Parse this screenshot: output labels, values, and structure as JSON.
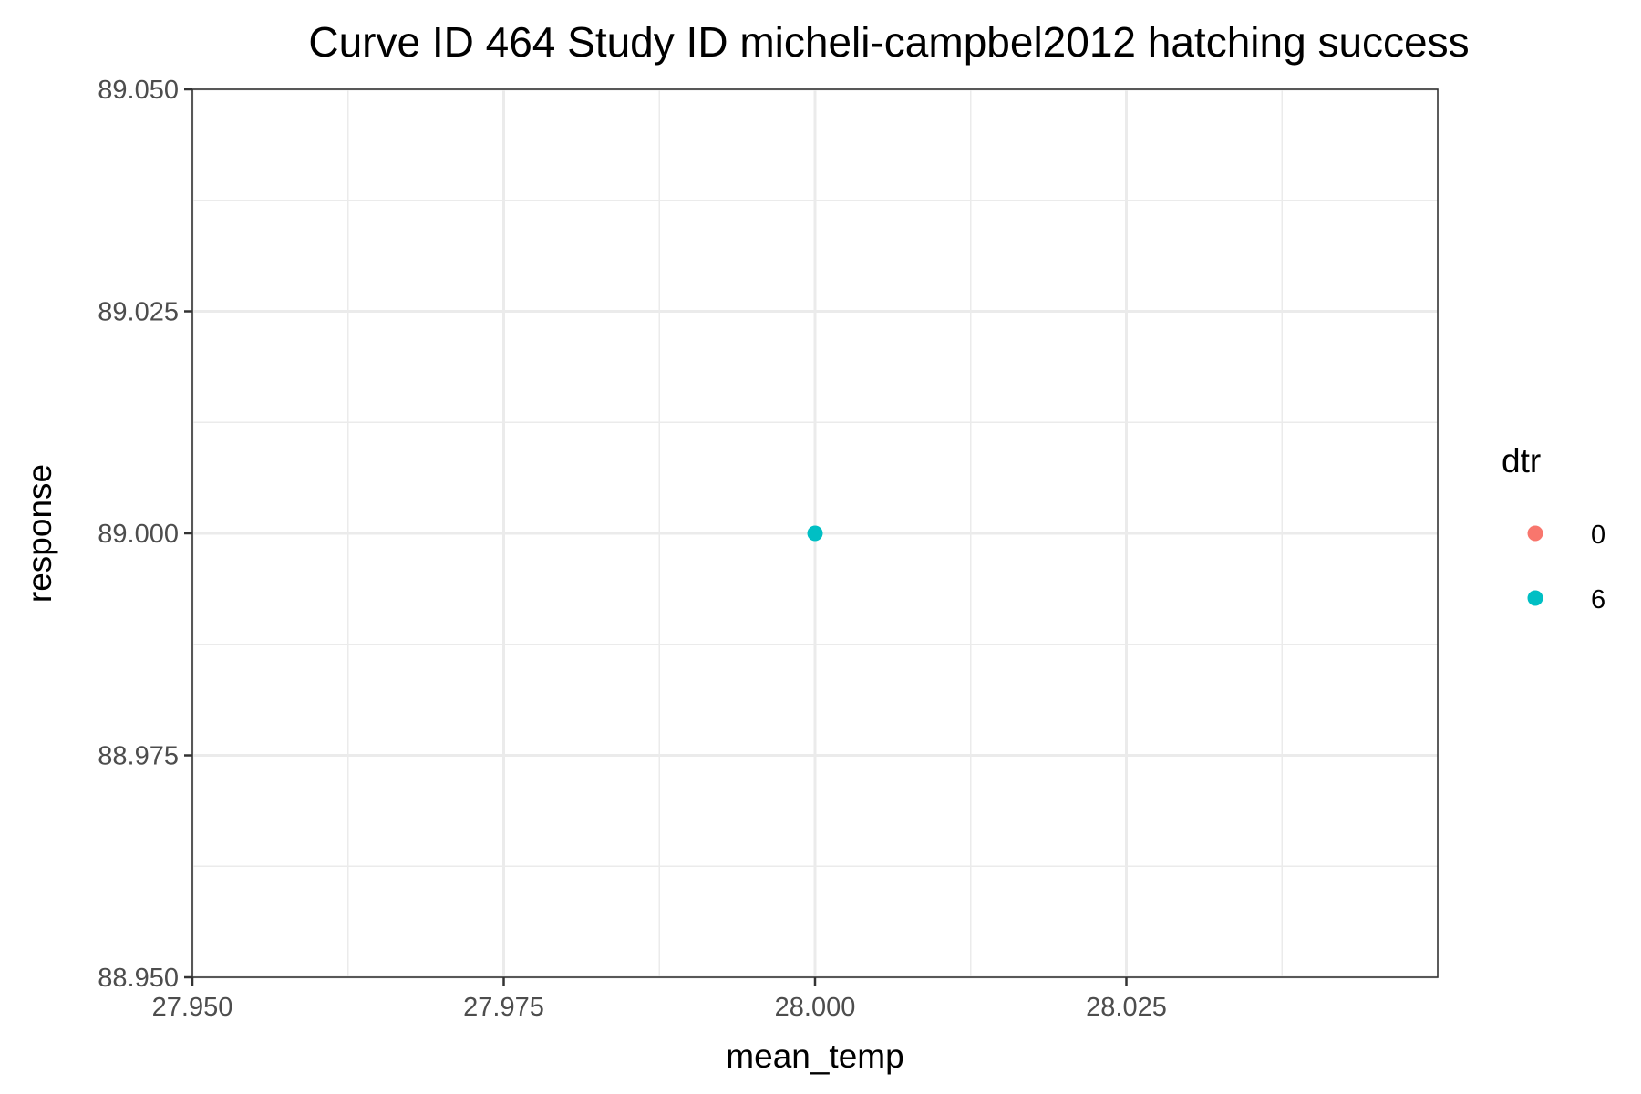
{
  "chart_data": {
    "type": "scatter",
    "title": "Curve ID 464 Study ID micheli-campbel2012 hatching success",
    "xlabel": "mean_temp",
    "ylabel": "response",
    "xlim": [
      27.95,
      28.05
    ],
    "ylim": [
      88.95,
      89.05
    ],
    "x_ticks": [
      27.95,
      27.975,
      28.0,
      28.025
    ],
    "x_tick_labels": [
      "27.950",
      "27.975",
      "28.000",
      "28.025"
    ],
    "y_ticks": [
      88.95,
      88.975,
      89.0,
      89.025,
      89.05
    ],
    "y_tick_labels": [
      "88.950",
      "88.975",
      "89.000",
      "89.025",
      "89.050"
    ],
    "grid": true,
    "legend": {
      "title": "dtr",
      "position": "right",
      "entries": [
        {
          "label": "0",
          "color": "#F8766D"
        },
        {
          "label": "6",
          "color": "#00BFC4"
        }
      ]
    },
    "series": [
      {
        "name": "0",
        "color": "#F8766D",
        "points": []
      },
      {
        "name": "6",
        "color": "#00BFC4",
        "points": [
          {
            "x": 28.0,
            "y": 89.0
          }
        ]
      }
    ]
  }
}
